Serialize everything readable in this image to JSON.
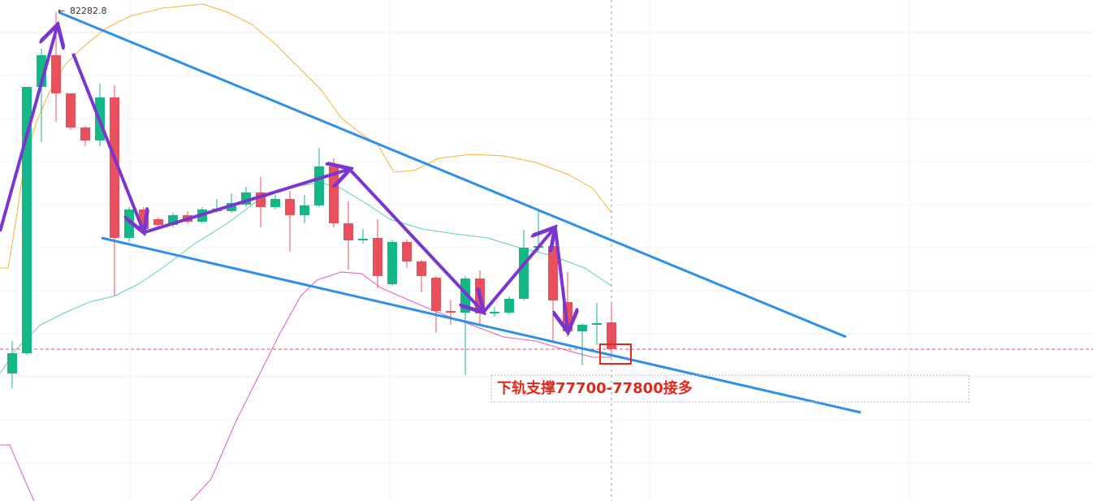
{
  "chart_data": {
    "type": "candlestick",
    "max_price": 82282.8,
    "annotation": "下轨支撑77700-77800接多",
    "up_color": "#13b886",
    "down_color": "#e8505b",
    "ylim": [
      76263,
      82433
    ],
    "open": [
      77833,
      78083,
      81363,
      81753,
      81283,
      80863,
      80703,
      81233,
      79503,
      79853,
      79733,
      79663,
      79783,
      79703,
      79833,
      79833,
      79913,
      80063,
      79883,
      79983,
      79783,
      79903,
      80383,
      79683,
      79473,
      79503,
      78933,
      79453,
      79213,
      79013,
      78603,
      78583,
      79003,
      78573,
      78583,
      78753,
      79383,
      79403,
      78713,
      78353,
      78433,
      78463
    ],
    "high": [
      78233,
      81363,
      81833,
      82282.8,
      81283,
      80883,
      81403,
      81383,
      79883,
      79883,
      79753,
      79813,
      79833,
      79883,
      79983,
      80053,
      80133,
      80253,
      80033,
      80083,
      80033,
      80613,
      80483,
      79953,
      79613,
      79733,
      79483,
      79483,
      79233,
      79033,
      78733,
      79033,
      79103,
      78653,
      78783,
      79603,
      79853,
      79533,
      79083,
      78453,
      78703,
      78703
    ],
    "low": [
      77653,
      78063,
      80683,
      80933,
      80833,
      80633,
      80633,
      78783,
      79453,
      79583,
      79633,
      79633,
      79683,
      79683,
      79813,
      79813,
      79883,
      79633,
      79853,
      79333,
      79683,
      79883,
      79633,
      79113,
      79433,
      78883,
      78913,
      79133,
      78833,
      78333,
      78433,
      77813,
      78433,
      78533,
      78563,
      78733,
      79333,
      78233,
      78283,
      77933,
      78183,
      78033
    ],
    "close": [
      78083,
      81363,
      81753,
      81283,
      80863,
      80703,
      81233,
      79503,
      79853,
      79613,
      79663,
      79783,
      79703,
      79853,
      79863,
      79933,
      80063,
      79883,
      79983,
      79783,
      79903,
      80383,
      79683,
      79473,
      79493,
      79033,
      79453,
      79213,
      79033,
      78603,
      78583,
      79003,
      78573,
      78593,
      78753,
      79383,
      79403,
      78733,
      78353,
      78433,
      78453,
      78133
    ]
  }
}
